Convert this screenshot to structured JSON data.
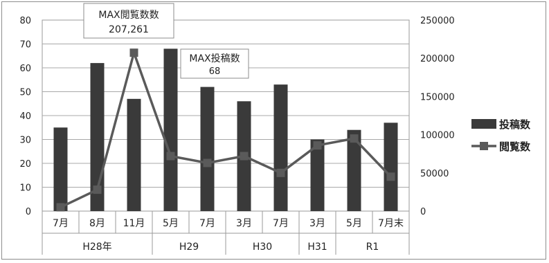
{
  "chart_data": {
    "type": "bar+line",
    "categories": [
      "7月",
      "8月",
      "11月",
      "5月",
      "7月",
      "3月",
      "7月",
      "3月",
      "5月",
      "7月末"
    ],
    "groups": [
      {
        "label": "H28年",
        "count": 3
      },
      {
        "label": "H29",
        "count": 2
      },
      {
        "label": "H30",
        "count": 2
      },
      {
        "label": "H31",
        "count": 1
      },
      {
        "label": "R1",
        "count": 2
      }
    ],
    "series": [
      {
        "name": "投稿数",
        "type": "bar",
        "axis": "left",
        "color": "#3a3a3a",
        "values": [
          35,
          62,
          47,
          68,
          52,
          46,
          53,
          30,
          34,
          37
        ]
      },
      {
        "name": "閲覧数",
        "type": "line",
        "axis": "right",
        "color": "#5a5a5a",
        "values": [
          5000,
          28000,
          207261,
          72000,
          63000,
          72000,
          50000,
          86000,
          95000,
          45000
        ]
      }
    ],
    "y_left": {
      "min": 0,
      "max": 80,
      "ticks": [
        0,
        10,
        20,
        30,
        40,
        50,
        60,
        70,
        80
      ]
    },
    "y_right": {
      "min": 0,
      "max": 250000,
      "ticks": [
        0,
        50000,
        100000,
        150000,
        200000,
        250000
      ]
    },
    "grid": true,
    "legend_position": "right",
    "annotations": [
      {
        "lines": [
          "MAX閲覧数数",
          "207,261"
        ],
        "target_series": 1,
        "target_index": 2
      },
      {
        "lines": [
          "MAX投稿数",
          "68"
        ],
        "target_series": 0,
        "target_index": 3
      }
    ]
  }
}
